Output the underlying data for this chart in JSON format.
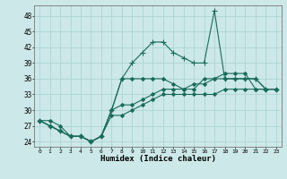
{
  "xlabel": "Humidex (Indice chaleur)",
  "bg_color": "#cce8e8",
  "grid_color": "#aed4d4",
  "line_color": "#1a6b5a",
  "xlim": [
    -0.5,
    23.5
  ],
  "ylim": [
    23,
    50
  ],
  "yticks": [
    24,
    27,
    30,
    33,
    36,
    39,
    42,
    45,
    48
  ],
  "xticks": [
    0,
    1,
    2,
    3,
    4,
    5,
    6,
    7,
    8,
    9,
    10,
    11,
    12,
    13,
    14,
    15,
    16,
    17,
    18,
    19,
    20,
    21,
    22,
    23
  ],
  "series": [
    [
      28,
      28,
      27,
      25,
      25,
      24,
      25,
      30,
      36,
      36,
      36,
      36,
      36,
      35,
      34,
      34,
      36,
      36,
      37,
      37,
      37,
      34,
      34,
      34
    ],
    [
      28,
      27,
      26,
      25,
      25,
      24,
      25,
      30,
      36,
      39,
      41,
      43,
      43,
      41,
      40,
      39,
      39,
      49,
      36,
      36,
      36,
      36,
      34,
      34
    ],
    [
      28,
      27,
      26,
      25,
      25,
      24,
      25,
      30,
      31,
      31,
      32,
      33,
      34,
      34,
      34,
      35,
      35,
      36,
      36,
      36,
      36,
      36,
      34,
      34
    ],
    [
      28,
      27,
      26,
      25,
      25,
      24,
      25,
      29,
      29,
      30,
      31,
      32,
      33,
      33,
      33,
      33,
      33,
      33,
      34,
      34,
      34,
      34,
      34,
      34
    ]
  ],
  "markers": [
    "D",
    "+",
    "D",
    "D"
  ],
  "markersizes": [
    2.0,
    4.5,
    2.0,
    2.0
  ],
  "linewidths": [
    0.8,
    0.8,
    0.8,
    0.8
  ]
}
